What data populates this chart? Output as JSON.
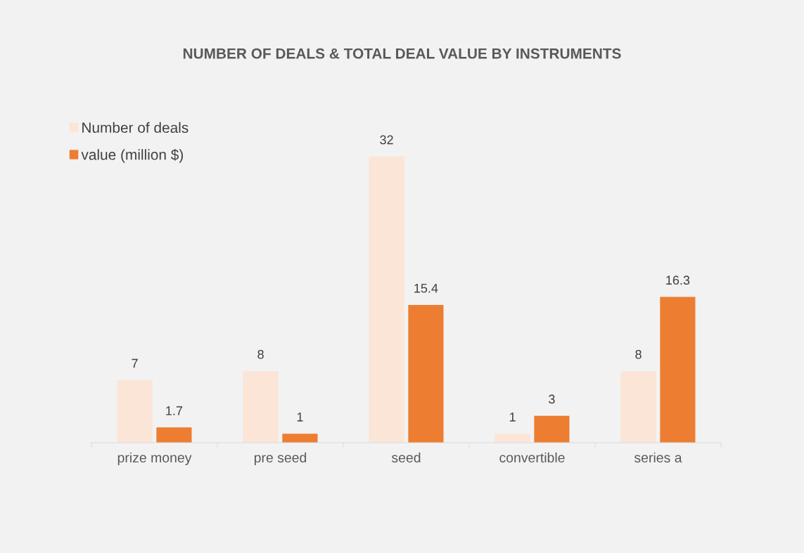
{
  "chart_data": {
    "type": "bar",
    "title": "NUMBER OF DEALS & TOTAL DEAL VALUE BY INSTRUMENTS",
    "categories": [
      "prize money",
      "pre seed",
      "seed",
      "convertible",
      "series a"
    ],
    "series": [
      {
        "name": "Number of deals",
        "color": "#fbe5d6",
        "values": [
          7,
          8,
          32,
          1,
          8
        ]
      },
      {
        "name": "value (million $)",
        "color": "#ed7d31",
        "values": [
          1.7,
          1,
          15.4,
          3,
          16.3
        ]
      }
    ],
    "data_labels": true,
    "legend": "top left",
    "grid": false
  }
}
